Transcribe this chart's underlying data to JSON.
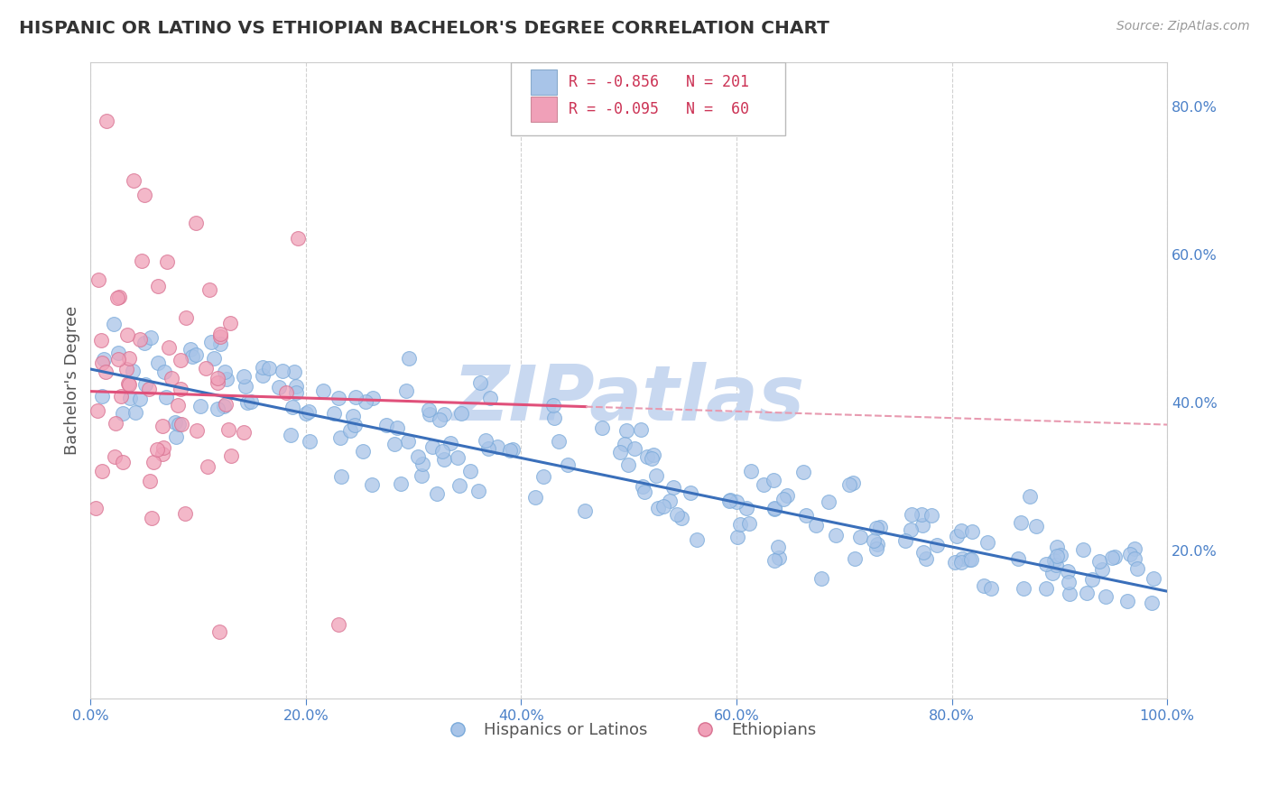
{
  "title": "HISPANIC OR LATINO VS ETHIOPIAN BACHELOR'S DEGREE CORRELATION CHART",
  "source": "Source: ZipAtlas.com",
  "ylabel": "Bachelor's Degree",
  "watermark": "ZIPatlas",
  "legend_blue_r": "-0.856",
  "legend_blue_n": "201",
  "legend_pink_r": "-0.095",
  "legend_pink_n": "60",
  "legend_label_blue": "Hispanics or Latinos",
  "legend_label_pink": "Ethiopians",
  "xlim": [
    0.0,
    1.0
  ],
  "ylim": [
    0.0,
    0.86
  ],
  "right_yticks": [
    0.2,
    0.4,
    0.6,
    0.8
  ],
  "right_yticklabels": [
    "20.0%",
    "40.0%",
    "60.0%",
    "80.0%"
  ],
  "xticks": [
    0.0,
    0.2,
    0.4,
    0.6,
    0.8,
    1.0
  ],
  "xticklabels": [
    "0.0%",
    "20.0%",
    "40.0%",
    "60.0%",
    "80.0%",
    "100.0%"
  ],
  "blue_scatter_color": "#a8c4e8",
  "pink_scatter_color": "#f0a0b8",
  "blue_line_color": "#3a6fba",
  "pink_line_color": "#e0507a",
  "pink_dash_color": "#e89ab0",
  "tick_color": "#4a80c8",
  "title_color": "#333333",
  "source_color": "#999999",
  "grid_color": "#cccccc",
  "background_color": "#ffffff",
  "watermark_color": "#c8d8f0",
  "blue_slope": -0.3,
  "blue_intercept": 0.445,
  "pink_slope": -0.045,
  "pink_intercept": 0.415,
  "pink_line_xmax": 0.46,
  "seed": 42
}
